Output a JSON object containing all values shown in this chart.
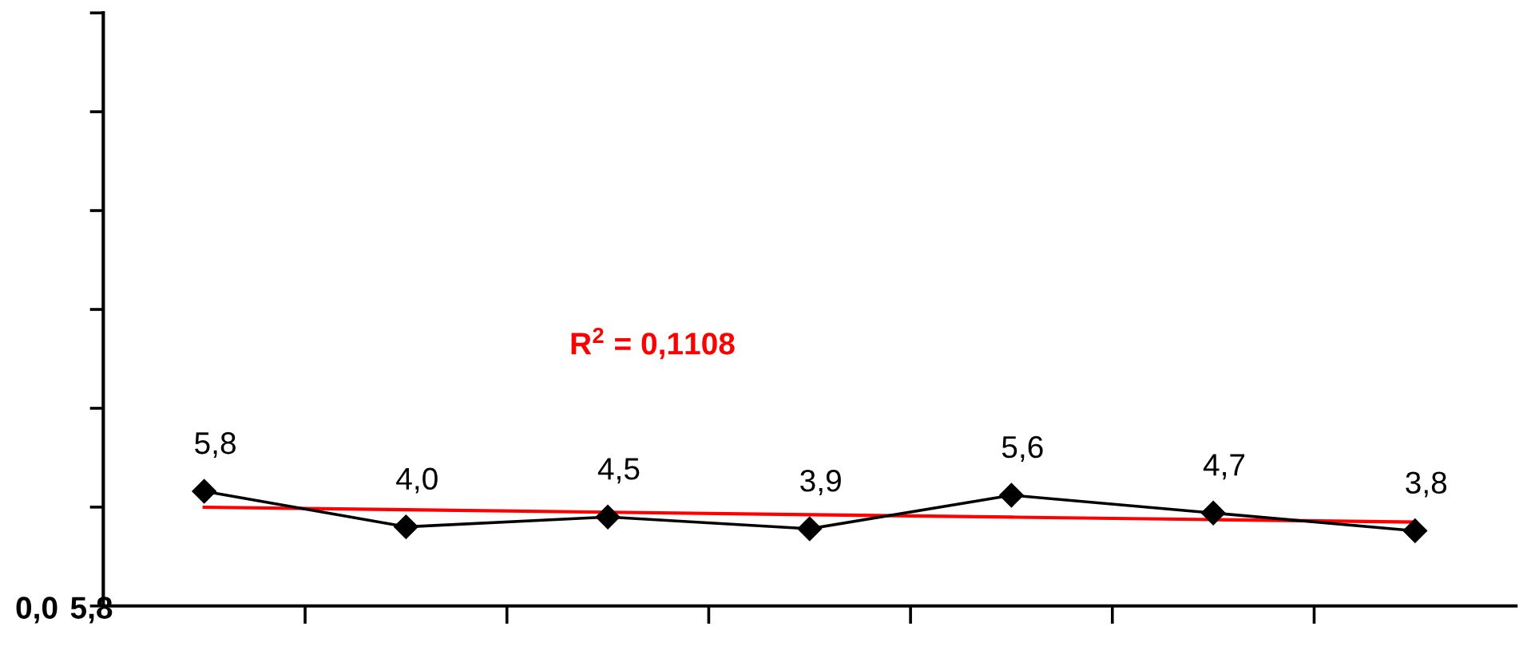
{
  "chart_data": {
    "type": "line",
    "categories": [
      null,
      null,
      null,
      null,
      null,
      null,
      null
    ],
    "series": [
      {
        "color": "#000000",
        "values": [
          5.8,
          4.0,
          4.5,
          3.9,
          5.6,
          4.7,
          3.8
        ],
        "value_labels": [
          "5,8",
          "4,0",
          "4,5",
          "3,9",
          "5,6",
          "4,7",
          "3,8"
        ],
        "marker": "diamond"
      },
      {
        "type": "line",
        "color": "#ff0000",
        "values": [
          4.99,
          4.865,
          4.74,
          4.615,
          4.49,
          4.365,
          4.24
        ],
        "marker": "none"
      }
    ],
    "annotations": [
      "R$^{2}$ = 0,1108",
      "0,0",
      "5,8"
    ],
    "grid": false,
    "line_style": "solid"
  }
}
